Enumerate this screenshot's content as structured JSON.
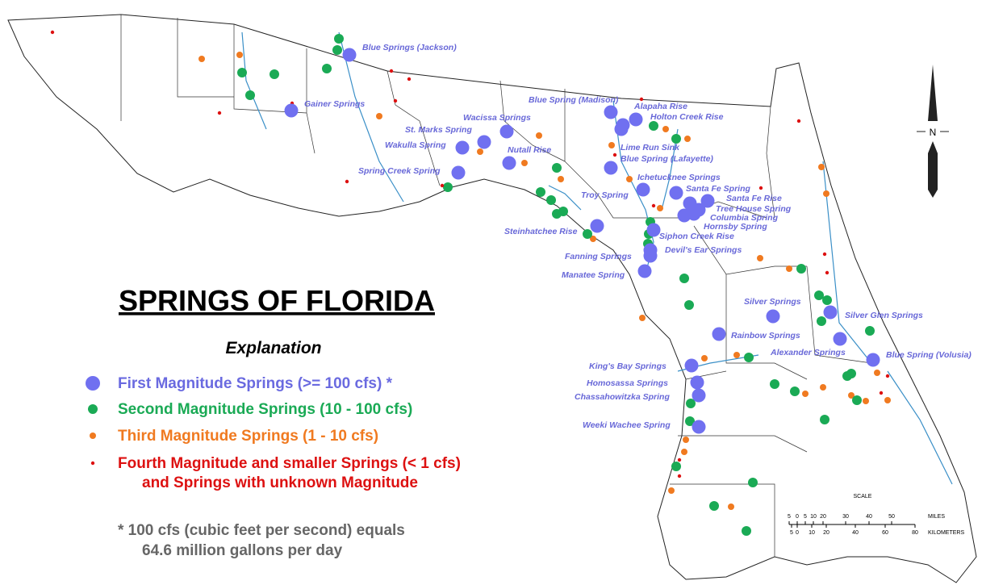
{
  "title": "SPRINGS OF FLORIDA",
  "explanation": {
    "heading": "Explanation",
    "items": [
      {
        "label": "First Magnitude Springs (>= 100 cfs) *"
      },
      {
        "label": "Second Magnitude Springs (10 - 100 cfs)"
      },
      {
        "label": "Third Magnitude Springs (1 - 10 cfs)"
      },
      {
        "label": "Fourth Magnitude and smaller Springs (< 1 cfs)",
        "label_line2": "and Springs with unknown Magnitude"
      }
    ],
    "note": [
      "* 100 cfs (cubic feet per second) equals",
      "64.6 million gallons per day"
    ]
  },
  "springs": [
    "Blue Springs (Jackson)",
    "Gainer Springs",
    "Blue Spring (Madison)",
    "Alapaha Rise",
    "Holton Creek Rise",
    "Wacissa Springs",
    "St. Marks Spring",
    "Wakulla Spring",
    "Nutall Rise",
    "Lime Run Sink",
    "Blue Spring (Lafayette)",
    "Spring Creek Spring",
    "Ichetucknee Springs",
    "Santa Fe Spring",
    "Troy Spring",
    "Santa Fe Rise",
    "Tree House Spring",
    "Columbia Spring",
    "Hornsby Spring",
    "Steinhatchee Rise",
    "Siphon Creek Rise",
    "Devil's Ear Springs",
    "Fanning Springs",
    "Manatee Spring",
    "Silver Springs",
    "Silver Glen Springs",
    "Rainbow Springs",
    "Alexander Springs",
    "Blue Spring (Volusia)",
    "King's Bay Springs",
    "Homosassa Springs",
    "Chassahowitzka Spring",
    "Weeki Wachee Spring"
  ],
  "north": "N",
  "scale": {
    "title": "SCALE",
    "miles_ticks": [
      "5",
      "0",
      "5",
      "10",
      "20",
      "30",
      "40",
      "50"
    ],
    "miles_unit": "MILES",
    "km_ticks": [
      "5",
      "0",
      "10",
      "20",
      "40",
      "60",
      "80"
    ],
    "km_unit": "KILOMETERS"
  }
}
